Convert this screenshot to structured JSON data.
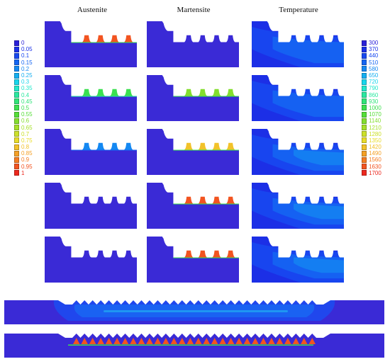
{
  "columns": [
    {
      "key": "austenite",
      "title": "Austenite"
    },
    {
      "key": "martensite",
      "title": "Martensite"
    },
    {
      "key": "temperature",
      "title": "Temperature"
    }
  ],
  "phase_legend": {
    "labels": [
      "0",
      "0.05",
      "0.1",
      "0.15",
      "0.2",
      "0.25",
      "0.3",
      "0.35",
      "0.4",
      "0.45",
      "0.5",
      "0.55",
      "0.6",
      "0.65",
      "0.7",
      "0.75",
      "0.8",
      "0.85",
      "0.9",
      "0.95",
      "1"
    ],
    "colors": [
      "#2a20d8",
      "#1a30e8",
      "#1848f0",
      "#1566f2",
      "#1488f2",
      "#14aef0",
      "#18d6ec",
      "#22e8cc",
      "#2ae8a0",
      "#30e478",
      "#3ce050",
      "#56de38",
      "#84de2e",
      "#a6e02a",
      "#cce02a",
      "#e8dc2a",
      "#f2c22a",
      "#f4a026",
      "#f47c22",
      "#f25420",
      "#ec281e"
    ]
  },
  "temperature_legend": {
    "labels": [
      "300",
      "370",
      "440",
      "510",
      "580",
      "650",
      "720",
      "790",
      "860",
      "930",
      "1000",
      "1070",
      "1140",
      "1210",
      "1280",
      "1350",
      "1420",
      "1490",
      "1560",
      "1630",
      "1700"
    ],
    "colors": [
      "#2a20d8",
      "#1a30e8",
      "#1848f0",
      "#1566f2",
      "#1488f2",
      "#14aef0",
      "#18d6ec",
      "#22e8cc",
      "#2ae8a0",
      "#30e478",
      "#3ce050",
      "#56de38",
      "#84de2e",
      "#a6e02a",
      "#cce02a",
      "#e8dc2a",
      "#f2c22a",
      "#f4a026",
      "#f47c22",
      "#f25420",
      "#ec281e"
    ]
  },
  "rows": 5,
  "body_color": "#3a2ad6"
}
